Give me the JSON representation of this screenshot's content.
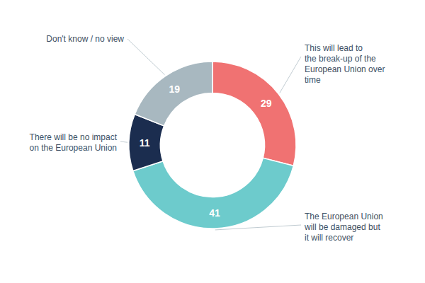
{
  "chart_data": {
    "type": "donut",
    "categories": [
      "This will lead to\nthe break-up of the\nEuropean Union over\ntime",
      "The European Union\nwill be damaged but\nit will recover",
      "There will be no impact\non the European Union",
      "Don't know / no view"
    ],
    "values": [
      29,
      41,
      11,
      19
    ],
    "colors": [
      "#f07272",
      "#6dcbcc",
      "#1b2d4f",
      "#a8b8c0"
    ],
    "data_labels": true
  }
}
